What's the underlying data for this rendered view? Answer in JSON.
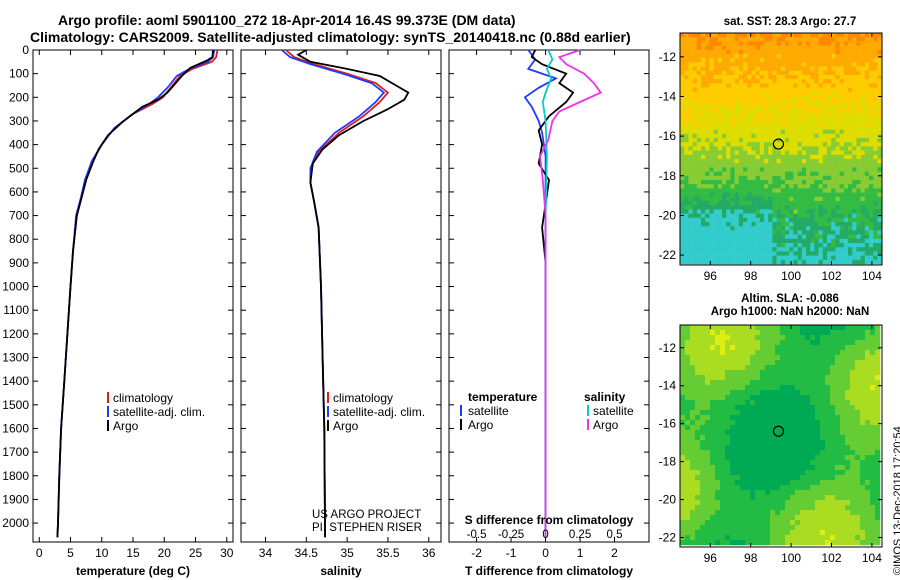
{
  "header": {
    "title_line1": "Argo profile: aoml 5901100_272 18-Apr-2014 16.4S 99.373E (DM data)",
    "title_line2": "Climatology: CARS2009. Satellite-adjusted climatology: synTS_20140418.nc (0.88d earlier)"
  },
  "maps": {
    "sst_title": "sat. SST: 28.3 Argo: 27.7",
    "sla_title1": "Altim. SLA: -0.086",
    "sla_title2": "Argo h1000: NaN h2000: NaN",
    "marker_lat": -16.4,
    "marker_lon": 99.373,
    "sst_palette": [
      "#ff0000",
      "#ff8800",
      "#ffaa00",
      "#ffcc00",
      "#dddd00",
      "#88cc33",
      "#33bb44",
      "#22aa66",
      "#33cccc"
    ],
    "sla_palette": [
      "#00aa55",
      "#22bb44",
      "#66cc33",
      "#aadd22",
      "#ddee11"
    ]
  },
  "watermark": "©IMOS 13-Dec-2018 17:20:54",
  "chart_data": [
    {
      "type": "line",
      "xlabel": "temperature (deg C)",
      "ylabel": "",
      "xlim": [
        -1,
        31
      ],
      "ylim": [
        2080,
        0
      ],
      "xticks": [
        0,
        5,
        10,
        15,
        20,
        25,
        30
      ],
      "yticks": [
        0,
        100,
        200,
        300,
        400,
        500,
        600,
        700,
        800,
        900,
        1000,
        1100,
        1200,
        1300,
        1400,
        1500,
        1600,
        1700,
        1800,
        1900,
        2000
      ],
      "legend": {
        "location": "lower-right",
        "entries": [
          "climatology",
          "satellite-adj. clim.",
          "Argo"
        ]
      },
      "series": [
        {
          "name": "climatology",
          "color": "#e31a1c",
          "points": [
            [
              28.5,
              0
            ],
            [
              28.3,
              30
            ],
            [
              27.6,
              50
            ],
            [
              24.5,
              80
            ],
            [
              22.5,
              110
            ],
            [
              21.0,
              160
            ],
            [
              19.8,
              200
            ],
            [
              18.0,
              230
            ],
            [
              15.0,
              270
            ],
            [
              12.0,
              330
            ],
            [
              10.0,
              400
            ],
            [
              8.5,
              470
            ],
            [
              7.5,
              550
            ],
            [
              6.8,
              620
            ],
            [
              6.0,
              700
            ],
            [
              5.4,
              850
            ],
            [
              5.0,
              1000
            ],
            [
              4.5,
              1200
            ],
            [
              4.0,
              1400
            ],
            [
              3.5,
              1600
            ],
            [
              3.2,
              1800
            ],
            [
              3.0,
              2000
            ],
            [
              2.9,
              2060
            ]
          ]
        },
        {
          "name": "satellite-adj. clim.",
          "color": "#1f3bff",
          "points": [
            [
              28.0,
              0
            ],
            [
              27.8,
              30
            ],
            [
              27.0,
              50
            ],
            [
              24.0,
              80
            ],
            [
              22.0,
              110
            ],
            [
              20.5,
              160
            ],
            [
              19.0,
              200
            ],
            [
              17.5,
              230
            ],
            [
              15.0,
              270
            ],
            [
              12.0,
              330
            ],
            [
              10.0,
              400
            ],
            [
              8.4,
              470
            ],
            [
              7.3,
              550
            ],
            [
              6.7,
              620
            ],
            [
              5.9,
              700
            ],
            [
              5.4,
              850
            ],
            [
              5.0,
              1000
            ],
            [
              4.5,
              1200
            ],
            [
              4.0,
              1400
            ],
            [
              3.5,
              1600
            ],
            [
              3.2,
              1800
            ],
            [
              3.0,
              2000
            ],
            [
              2.9,
              2060
            ]
          ]
        },
        {
          "name": "Argo",
          "color": "#000000",
          "points": [
            [
              27.8,
              0
            ],
            [
              27.7,
              30
            ],
            [
              26.8,
              45
            ],
            [
              24.2,
              75
            ],
            [
              22.8,
              110
            ],
            [
              21.5,
              150
            ],
            [
              20.5,
              180
            ],
            [
              19.0,
              210
            ],
            [
              16.5,
              240
            ],
            [
              13.5,
              300
            ],
            [
              11.0,
              360
            ],
            [
              9.5,
              420
            ],
            [
              8.5,
              480
            ],
            [
              7.5,
              550
            ],
            [
              6.8,
              620
            ],
            [
              6.0,
              700
            ],
            [
              5.4,
              850
            ],
            [
              5.0,
              1000
            ],
            [
              4.5,
              1200
            ],
            [
              4.0,
              1400
            ],
            [
              3.5,
              1600
            ],
            [
              3.2,
              1800
            ],
            [
              3.0,
              2000
            ],
            [
              2.9,
              2060
            ]
          ]
        }
      ]
    },
    {
      "type": "line",
      "xlabel": "salinity",
      "ylabel": "",
      "xlim": [
        33.7,
        36.15
      ],
      "ylim": [
        2080,
        0
      ],
      "xticks": [
        34,
        34.5,
        35,
        35.5,
        36
      ],
      "legend": {
        "location": "lower-right",
        "entries": [
          "climatology",
          "satellite-adj. clim.",
          "Argo"
        ]
      },
      "annotations": [
        "US ARGO PROJECT",
        "PI: STEPHEN RISER"
      ],
      "series": [
        {
          "name": "climatology",
          "color": "#e31a1c",
          "points": [
            [
              34.25,
              0
            ],
            [
              34.35,
              30
            ],
            [
              34.6,
              60
            ],
            [
              35.0,
              100
            ],
            [
              35.35,
              140
            ],
            [
              35.5,
              180
            ],
            [
              35.4,
              220
            ],
            [
              35.2,
              280
            ],
            [
              34.9,
              350
            ],
            [
              34.65,
              430
            ],
            [
              34.55,
              500
            ],
            [
              34.55,
              560
            ],
            [
              34.6,
              650
            ],
            [
              34.65,
              750
            ],
            [
              34.68,
              1000
            ],
            [
              34.7,
              1300
            ],
            [
              34.72,
              1600
            ],
            [
              34.73,
              2060
            ]
          ]
        },
        {
          "name": "satellite-adj. clim.",
          "color": "#1f3bff",
          "points": [
            [
              34.2,
              0
            ],
            [
              34.3,
              30
            ],
            [
              34.55,
              60
            ],
            [
              34.95,
              100
            ],
            [
              35.3,
              140
            ],
            [
              35.45,
              180
            ],
            [
              35.35,
              220
            ],
            [
              35.15,
              280
            ],
            [
              34.85,
              350
            ],
            [
              34.63,
              430
            ],
            [
              34.55,
              500
            ],
            [
              34.55,
              560
            ],
            [
              34.6,
              650
            ],
            [
              34.65,
              750
            ],
            [
              34.68,
              1000
            ],
            [
              34.7,
              1300
            ],
            [
              34.72,
              1600
            ],
            [
              34.73,
              2060
            ]
          ]
        },
        {
          "name": "Argo",
          "color": "#000000",
          "points": [
            [
              34.5,
              0
            ],
            [
              34.4,
              20
            ],
            [
              34.55,
              50
            ],
            [
              35.0,
              80
            ],
            [
              35.4,
              110
            ],
            [
              35.6,
              150
            ],
            [
              35.75,
              180
            ],
            [
              35.7,
              210
            ],
            [
              35.5,
              250
            ],
            [
              35.2,
              300
            ],
            [
              34.9,
              360
            ],
            [
              34.7,
              420
            ],
            [
              34.58,
              480
            ],
            [
              34.55,
              560
            ],
            [
              34.6,
              650
            ],
            [
              34.65,
              750
            ],
            [
              34.68,
              1000
            ],
            [
              34.7,
              1300
            ],
            [
              34.72,
              1600
            ],
            [
              34.73,
              2060
            ]
          ]
        }
      ]
    },
    {
      "type": "line",
      "xlabel": "T difference from climatology",
      "ylabel": "",
      "xlim": [
        -2.8,
        3.0
      ],
      "ylim": [
        2080,
        0
      ],
      "xticks": [
        -2,
        -1,
        0,
        1,
        2
      ],
      "top_axis_label": "S difference from climatology",
      "top_axis_ticks": [
        "-0.5",
        "-0.25",
        "0",
        "0.25",
        "0.5"
      ],
      "legend_left": {
        "title": "temperature",
        "entries": [
          "satellite",
          "Argo"
        ]
      },
      "legend_right": {
        "title": "salinity",
        "entries": [
          "satellite",
          "Argo"
        ]
      },
      "series": [
        {
          "name": "satellite",
          "group": "temperature",
          "color": "#1f3bff",
          "points": [
            [
              -0.5,
              0
            ],
            [
              -0.3,
              40
            ],
            [
              -0.5,
              80
            ],
            [
              0.3,
              120
            ],
            [
              -0.2,
              160
            ],
            [
              -0.6,
              200
            ],
            [
              -0.4,
              240
            ],
            [
              -0.2,
              300
            ],
            [
              -0.1,
              350
            ],
            [
              0.0,
              450
            ],
            [
              0.0,
              600
            ],
            [
              0.0,
              1000
            ],
            [
              0.0,
              2060
            ]
          ]
        },
        {
          "name": "Argo",
          "group": "temperature",
          "color": "#000000",
          "points": [
            [
              -0.3,
              0
            ],
            [
              -0.4,
              30
            ],
            [
              -0.1,
              60
            ],
            [
              0.6,
              100
            ],
            [
              0.4,
              140
            ],
            [
              0.8,
              180
            ],
            [
              0.6,
              220
            ],
            [
              0.1,
              280
            ],
            [
              -0.2,
              340
            ],
            [
              -0.1,
              400
            ],
            [
              -0.2,
              480
            ],
            [
              0.1,
              550
            ],
            [
              0.0,
              650
            ],
            [
              -0.1,
              750
            ],
            [
              0.0,
              900
            ],
            [
              0.0,
              1200
            ],
            [
              0.0,
              2060
            ]
          ]
        },
        {
          "name": "satellite",
          "group": "salinity",
          "color": "#00cccc",
          "points": [
            [
              0.02,
              0
            ],
            [
              0.05,
              40
            ],
            [
              0.01,
              80
            ],
            [
              0.04,
              120
            ],
            [
              0.0,
              180
            ],
            [
              -0.02,
              220
            ],
            [
              0.0,
              300
            ],
            [
              0.01,
              450
            ],
            [
              0.0,
              700
            ],
            [
              0.0,
              1000
            ],
            [
              0.0,
              2060
            ]
          ]
        },
        {
          "name": "Argo",
          "group": "salinity",
          "color": "#ee33ee",
          "points": [
            [
              0.25,
              0
            ],
            [
              0.1,
              30
            ],
            [
              0.15,
              60
            ],
            [
              0.28,
              100
            ],
            [
              0.35,
              140
            ],
            [
              0.4,
              180
            ],
            [
              0.25,
              220
            ],
            [
              0.1,
              260
            ],
            [
              0.05,
              300
            ],
            [
              0.02,
              380
            ],
            [
              -0.04,
              450
            ],
            [
              -0.02,
              550
            ],
            [
              0.0,
              700
            ],
            [
              0.0,
              1000
            ],
            [
              0.0,
              2060
            ]
          ]
        }
      ]
    }
  ],
  "map_axes": {
    "sst": {
      "xticks": [
        "96",
        "98",
        "100",
        "102",
        "104"
      ],
      "yticks": [
        "-12",
        "-14",
        "-16",
        "-18",
        "-20",
        "-22"
      ],
      "xlim": [
        94.5,
        104.5
      ],
      "ylim": [
        -22.5,
        -10.8
      ]
    },
    "sla": {
      "xticks": [
        "96",
        "98",
        "100",
        "102",
        "104"
      ],
      "yticks": [
        "-12",
        "-14",
        "-16",
        "-18",
        "-20",
        "-22"
      ],
      "xlim": [
        94.5,
        104.5
      ],
      "ylim": [
        -22.5,
        -10.8
      ]
    }
  }
}
